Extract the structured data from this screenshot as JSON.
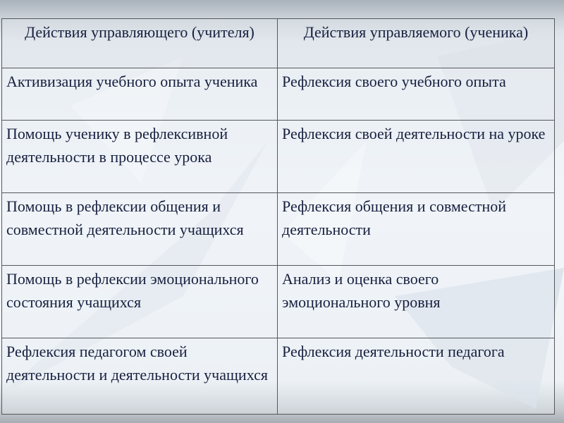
{
  "table": {
    "headers": [
      "Действия управляющего (учителя)",
      "Действия управляемого (ученика)"
    ],
    "rows": [
      [
        "Активизация учебного опыта ученика",
        "Рефлексия своего учебного опыта"
      ],
      [
        "Помощь ученику в рефлексивной деятельности в процессе урока",
        "Рефлексия своей деятельности на уроке"
      ],
      [
        "Помощь в рефлексии общения и совместной деятельности учащихся",
        "Рефлексия общения и совместной деятельности"
      ],
      [
        "Помощь в рефлексии эмоционального состояния учащихся",
        "Анализ и оценка своего эмоционального уровня"
      ],
      [
        "Рефлексия педагогом своей деятельности и деятельности учащихся",
        "Рефлексия деятельности педагога"
      ]
    ]
  }
}
